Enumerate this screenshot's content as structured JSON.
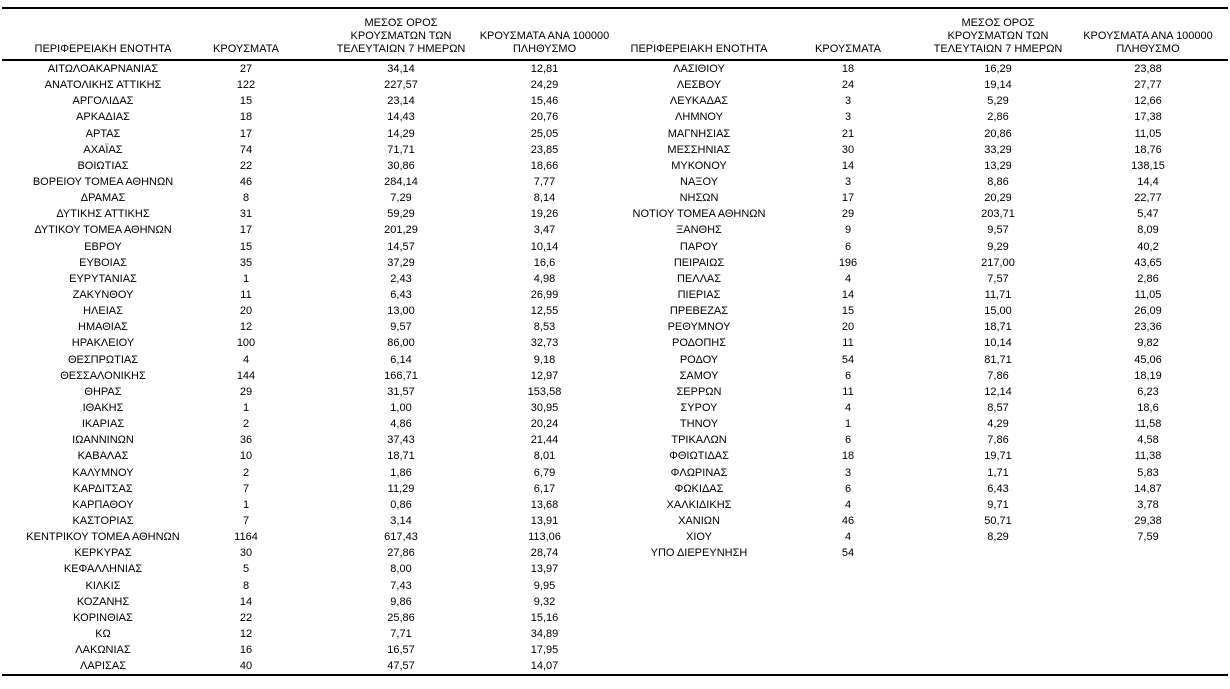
{
  "table": {
    "headers": {
      "region": "ΠΕΡΙΦΕΡΕΙΑΚΗ ΕΝΟΤΗΤΑ",
      "cases": "ΚΡΟΥΣΜΑΤΑ",
      "avg_7day": "ΜΕΣΟΣ ΟΡΟΣ\nΚΡΟΥΣΜΑΤΩΝ ΤΩΝ\nΤΕΛΕΥΤΑΙΩΝ 7 ΗΜΕΡΩΝ",
      "per_100k": "ΚΡΟΥΣΜΑΤΑ ΑΝΑ 100000\nΠΛΗΘΥΣΜΟ"
    },
    "left_rows": [
      [
        "ΑΙΤΩΛΟΑΚΑΡΝΑΝΙΑΣ",
        "27",
        "34,14",
        "12,81"
      ],
      [
        "ΑΝΑΤΟΛΙΚΗΣ ΑΤΤΙΚΗΣ",
        "122",
        "227,57",
        "24,29"
      ],
      [
        "ΑΡΓΟΛΙΔΑΣ",
        "15",
        "23,14",
        "15,46"
      ],
      [
        "ΑΡΚΑΔΙΑΣ",
        "18",
        "14,43",
        "20,76"
      ],
      [
        "ΑΡΤΑΣ",
        "17",
        "14,29",
        "25,05"
      ],
      [
        "ΑΧΑΪΑΣ",
        "74",
        "71,71",
        "23,85"
      ],
      [
        "ΒΟΙΩΤΙΑΣ",
        "22",
        "30,86",
        "18,66"
      ],
      [
        "ΒΟΡΕΙΟΥ ΤΟΜΕΑ ΑΘΗΝΩΝ",
        "46",
        "284,14",
        "7,77"
      ],
      [
        "ΔΡΑΜΑΣ",
        "8",
        "7,29",
        "8,14"
      ],
      [
        "ΔΥΤΙΚΗΣ ΑΤΤΙΚΗΣ",
        "31",
        "59,29",
        "19,26"
      ],
      [
        "ΔΥΤΙΚΟΥ ΤΟΜΕΑ ΑΘΗΝΩΝ",
        "17",
        "201,29",
        "3,47"
      ],
      [
        "ΕΒΡΟΥ",
        "15",
        "14,57",
        "10,14"
      ],
      [
        "ΕΥΒΟΙΑΣ",
        "35",
        "37,29",
        "16,6"
      ],
      [
        "ΕΥΡΥΤΑΝΙΑΣ",
        "1",
        "2,43",
        "4,98"
      ],
      [
        "ΖΑΚΥΝΘΟΥ",
        "11",
        "6,43",
        "26,99"
      ],
      [
        "ΗΛΕΙΑΣ",
        "20",
        "13,00",
        "12,55"
      ],
      [
        "ΗΜΑΘΙΑΣ",
        "12",
        "9,57",
        "8,53"
      ],
      [
        "ΗΡΑΚΛΕΙΟΥ",
        "100",
        "86,00",
        "32,73"
      ],
      [
        "ΘΕΣΠΡΩΤΙΑΣ",
        "4",
        "6,14",
        "9,18"
      ],
      [
        "ΘΕΣΣΑΛΟΝΙΚΗΣ",
        "144",
        "166,71",
        "12,97"
      ],
      [
        "ΘΗΡΑΣ",
        "29",
        "31,57",
        "153,58"
      ],
      [
        "ΙΘΑΚΗΣ",
        "1",
        "1,00",
        "30,95"
      ],
      [
        "ΙΚΑΡΙΑΣ",
        "2",
        "4,86",
        "20,24"
      ],
      [
        "ΙΩΑΝΝΙΝΩΝ",
        "36",
        "37,43",
        "21,44"
      ],
      [
        "ΚΑΒΑΛΑΣ",
        "10",
        "18,71",
        "8,01"
      ],
      [
        "ΚΑΛΥΜΝΟΥ",
        "2",
        "1,86",
        "6,79"
      ],
      [
        "ΚΑΡΔΙΤΣΑΣ",
        "7",
        "11,29",
        "6,17"
      ],
      [
        "ΚΑΡΠΑΘΟΥ",
        "1",
        "0,86",
        "13,68"
      ],
      [
        "ΚΑΣΤΟΡΙΑΣ",
        "7",
        "3,14",
        "13,91"
      ],
      [
        "ΚΕΝΤΡΙΚΟΥ ΤΟΜΕΑ ΑΘΗΝΩΝ",
        "1164",
        "617,43",
        "113,06"
      ],
      [
        "ΚΕΡΚΥΡΑΣ",
        "30",
        "27,86",
        "28,74"
      ],
      [
        "ΚΕΦΑΛΛΗΝΙΑΣ",
        "5",
        "8,00",
        "13,97"
      ],
      [
        "ΚΙΛΚΙΣ",
        "8",
        "7,43",
        "9,95"
      ],
      [
        "ΚΟΖΑΝΗΣ",
        "14",
        "9,86",
        "9,32"
      ],
      [
        "ΚΟΡΙΝΘΙΑΣ",
        "22",
        "25,86",
        "15,16"
      ],
      [
        "ΚΩ",
        "12",
        "7,71",
        "34,89"
      ],
      [
        "ΛΑΚΩΝΙΑΣ",
        "16",
        "16,57",
        "17,95"
      ],
      [
        "ΛΑΡΙΣΑΣ",
        "40",
        "47,57",
        "14,07"
      ]
    ],
    "right_rows": [
      [
        "ΛΑΣΙΘΙΟΥ",
        "18",
        "16,29",
        "23,88"
      ],
      [
        "ΛΕΣΒΟΥ",
        "24",
        "19,14",
        "27,77"
      ],
      [
        "ΛΕΥΚΑΔΑΣ",
        "3",
        "5,29",
        "12,66"
      ],
      [
        "ΛΗΜΝΟΥ",
        "3",
        "2,86",
        "17,38"
      ],
      [
        "ΜΑΓΝΗΣΙΑΣ",
        "21",
        "20,86",
        "11,05"
      ],
      [
        "ΜΕΣΣΗΝΙΑΣ",
        "30",
        "33,29",
        "18,76"
      ],
      [
        "ΜΥΚΟΝΟΥ",
        "14",
        "13,29",
        "138,15"
      ],
      [
        "ΝΑΞΟΥ",
        "3",
        "8,86",
        "14,4"
      ],
      [
        "ΝΗΣΩΝ",
        "17",
        "20,29",
        "22,77"
      ],
      [
        "ΝΟΤΙΟΥ ΤΟΜΕΑ ΑΘΗΝΩΝ",
        "29",
        "203,71",
        "5,47"
      ],
      [
        "ΞΑΝΘΗΣ",
        "9",
        "9,57",
        "8,09"
      ],
      [
        "ΠΑΡΟΥ",
        "6",
        "9,29",
        "40,2"
      ],
      [
        "ΠΕΙΡΑΙΩΣ",
        "196",
        "217,00",
        "43,65"
      ],
      [
        "ΠΕΛΛΑΣ",
        "4",
        "7,57",
        "2,86"
      ],
      [
        "ΠΙΕΡΙΑΣ",
        "14",
        "11,71",
        "11,05"
      ],
      [
        "ΠΡΕΒΕΖΑΣ",
        "15",
        "15,00",
        "26,09"
      ],
      [
        "ΡΕΘΥΜΝΟΥ",
        "20",
        "18,71",
        "23,36"
      ],
      [
        "ΡΟΔΟΠΗΣ",
        "11",
        "10,14",
        "9,82"
      ],
      [
        "ΡΟΔΟΥ",
        "54",
        "81,71",
        "45,06"
      ],
      [
        "ΣΑΜΟΥ",
        "6",
        "7,86",
        "18,19"
      ],
      [
        "ΣΕΡΡΩΝ",
        "11",
        "12,14",
        "6,23"
      ],
      [
        "ΣΥΡΟΥ",
        "4",
        "8,57",
        "18,6"
      ],
      [
        "ΤΗΝΟΥ",
        "1",
        "4,29",
        "11,58"
      ],
      [
        "ΤΡΙΚΑΛΩΝ",
        "6",
        "7,86",
        "4,58"
      ],
      [
        "ΦΘΙΩΤΙΔΑΣ",
        "18",
        "19,71",
        "11,38"
      ],
      [
        "ΦΛΩΡΙΝΑΣ",
        "3",
        "1,71",
        "5,83"
      ],
      [
        "ΦΩΚΙΔΑΣ",
        "6",
        "6,43",
        "14,87"
      ],
      [
        "ΧΑΛΚΙΔΙΚΗΣ",
        "4",
        "9,71",
        "3,78"
      ],
      [
        "ΧΑΝΙΩΝ",
        "46",
        "50,71",
        "29,38"
      ],
      [
        "ΧΙΟΥ",
        "4",
        "8,29",
        "7,59"
      ],
      [
        "ΥΠΟ ΔΙΕΡΕΥΝΗΣΗ",
        "54",
        "",
        ""
      ]
    ]
  }
}
